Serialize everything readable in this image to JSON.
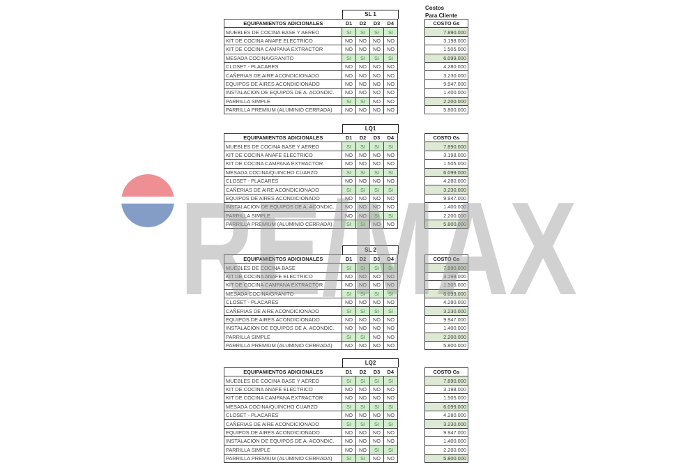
{
  "header": {
    "costos_line1": "Costos",
    "costos_line2": "Para Cliente"
  },
  "watermark": {
    "text": "RE/MAX",
    "logo": "remax-balloon",
    "colors": {
      "red": "#e0343c",
      "blue": "#1f4e9a",
      "letters": "#9a9a9a"
    }
  },
  "colors": {
    "si_fill": "#d4ecd0",
    "cost_highlight": "#dde9d4"
  },
  "columns": {
    "label": "EQUIPAMIENTOS ADICIONALES",
    "d": [
      "D1",
      "D2",
      "D3",
      "D4"
    ],
    "cost": "COSTO Gs"
  },
  "tables": [
    {
      "name": "SL 1",
      "rows": [
        {
          "item": "MUEBLES DE COCINA BASE Y AEREO",
          "d": [
            "SI",
            "SI",
            "SI",
            "SI"
          ],
          "cost": "7.890.000",
          "hl": true
        },
        {
          "item": "KIT DE COCINA ANAFE ELECTRICO",
          "d": [
            "NO",
            "NO",
            "NO",
            "NO"
          ],
          "cost": "3.198.000",
          "hl": false
        },
        {
          "item": "KIT DE COCINA CAMPANA EXTRACTOR",
          "d": [
            "NO",
            "NO",
            "NO",
            "NO"
          ],
          "cost": "1.505.000",
          "hl": false
        },
        {
          "item": "MESADA COCINA/GRANITO",
          "d": [
            "SI",
            "SI",
            "SI",
            "SI"
          ],
          "cost": "6.099.000",
          "hl": true
        },
        {
          "item": "CLOSET - PLACARES",
          "d": [
            "NO",
            "NO",
            "NO",
            "NO"
          ],
          "cost": "4.280.000",
          "hl": false
        },
        {
          "item": "CAÑERIAS DE AIRE ACONDICIONADO",
          "d": [
            "NO",
            "NO",
            "NO",
            "NO"
          ],
          "cost": "3.230.000",
          "hl": false
        },
        {
          "item": "EQUIPOS DE AIRES ACONDICIONADO",
          "d": [
            "NO",
            "NO",
            "NO",
            "NO"
          ],
          "cost": "9.947.000",
          "hl": false
        },
        {
          "item": "INSTALACION DE EQUIPOS DE A. ACONDIC.",
          "d": [
            "NO",
            "NO",
            "NO",
            "NO"
          ],
          "cost": "1.400.000",
          "hl": false
        },
        {
          "item": "PARRILLA SIMPLE",
          "d": [
            "SI",
            "SI",
            "NO",
            "NO"
          ],
          "cost": "2.200.000",
          "hl": true
        },
        {
          "item": "PARRILLA PREMIUM (ALUMINIO CERRADA)",
          "d": [
            "NO",
            "NO",
            "NO",
            "NO"
          ],
          "cost": "5.800.000",
          "hl": false
        }
      ]
    },
    {
      "name": "LQ1",
      "rows": [
        {
          "item": "MUEBLES DE COCINA BASE Y AEREO",
          "d": [
            "SI",
            "SI",
            "SI",
            "SI"
          ],
          "cost": "7.890.000",
          "hl": true
        },
        {
          "item": "KIT DE COCINA ANAFE ELECTRICO",
          "d": [
            "NO",
            "NO",
            "NO",
            "NO"
          ],
          "cost": "3.198.000",
          "hl": false
        },
        {
          "item": "KIT DE COCINA CAMPANA EXTRACTOR",
          "d": [
            "NO",
            "NO",
            "NO",
            "NO"
          ],
          "cost": "1.505.000",
          "hl": false
        },
        {
          "item": "MESADA COCINA/QUINCHO CUARZO",
          "d": [
            "SI",
            "SI",
            "SI",
            "SI"
          ],
          "cost": "6.099.000",
          "hl": true
        },
        {
          "item": "CLOSET - PLACARES",
          "d": [
            "NO",
            "NO",
            "NO",
            "NO"
          ],
          "cost": "4.280.000",
          "hl": false
        },
        {
          "item": "CAÑERIAS DE AIRE ACONDICIONADO",
          "d": [
            "SI",
            "SI",
            "SI",
            "SI"
          ],
          "cost": "3.230.000",
          "hl": true
        },
        {
          "item": "EQUIPOS DE AIRES ACONDICIONADO",
          "d": [
            "NO",
            "NO",
            "NO",
            "NO"
          ],
          "cost": "9.947.000",
          "hl": false
        },
        {
          "item": "INSTALACION DE EQUIPOS DE A. ACONDIC.",
          "d": [
            "NO",
            "NO",
            "NO",
            "NO"
          ],
          "cost": "1.400.000",
          "hl": false
        },
        {
          "item": "PARRILLA SIMPLE",
          "d": [
            "NO",
            "NO",
            "SI",
            "SI"
          ],
          "cost": "2.200.000",
          "hl": false
        },
        {
          "item": "PARRILLA PREMIUM (ALUMINIO CERRADA)",
          "d": [
            "SI",
            "SI",
            "NO",
            "NO"
          ],
          "cost": "5.800.000",
          "hl": true
        }
      ]
    },
    {
      "name": "SL 2",
      "rows": [
        {
          "item": "MUEBLES DE COCINA BASE",
          "d": [
            "SI",
            "SI",
            "SI",
            "SI"
          ],
          "cost": "7.890.000",
          "hl": true
        },
        {
          "item": "KIT DE COCINA ANAFE ELECTRICO",
          "d": [
            "NO",
            "NO",
            "NO",
            "NO"
          ],
          "cost": "3.198.000",
          "hl": false
        },
        {
          "item": "KIT DE COCINA CAMPANA EXTRACTOR",
          "d": [
            "NO",
            "NO",
            "NO",
            "NO"
          ],
          "cost": "1.505.000",
          "hl": false
        },
        {
          "item": "MESADA COCINA/GRANITO",
          "d": [
            "SI",
            "SI",
            "SI",
            "SI"
          ],
          "cost": "6.099.000",
          "hl": true
        },
        {
          "item": "CLOSET - PLACARES",
          "d": [
            "NO",
            "NO",
            "NO",
            "NO"
          ],
          "cost": "4.280.000",
          "hl": false
        },
        {
          "item": "CAÑERIAS DE AIRE ACONDICIONADO",
          "d": [
            "SI",
            "SI",
            "SI",
            "SI"
          ],
          "cost": "3.230.000",
          "hl": true
        },
        {
          "item": "EQUIPOS DE AIRES ACONDICIONADO",
          "d": [
            "NO",
            "NO",
            "NO",
            "NO"
          ],
          "cost": "9.947.000",
          "hl": false
        },
        {
          "item": "INSTALACION DE EQUIPOS DE A. ACONDIC.",
          "d": [
            "NO",
            "NO",
            "NO",
            "NO"
          ],
          "cost": "1.400.000",
          "hl": false
        },
        {
          "item": "PARRILLA SIMPLE",
          "d": [
            "SI",
            "SI",
            "NO",
            "NO"
          ],
          "cost": "2.200.000",
          "hl": true
        },
        {
          "item": "PARRILLA PREMIUM (ALUMINIO CERRADA)",
          "d": [
            "NO",
            "NO",
            "NO",
            "NO"
          ],
          "cost": "5.800.000",
          "hl": false
        }
      ]
    },
    {
      "name": "LQ2",
      "rows": [
        {
          "item": "MUEBLES DE COCINA BASE Y AEREO",
          "d": [
            "SI",
            "SI",
            "SI",
            "SI"
          ],
          "cost": "7.890.000",
          "hl": true
        },
        {
          "item": "KIT DE COCINA ANAFE ELECTRICO",
          "d": [
            "NO",
            "NO",
            "NO",
            "NO"
          ],
          "cost": "3.198.000",
          "hl": false
        },
        {
          "item": "KIT DE COCINA CAMPANA EXTRACTOR",
          "d": [
            "NO",
            "NO",
            "NO",
            "NO"
          ],
          "cost": "1.505.000",
          "hl": false
        },
        {
          "item": "MESADA COCINA/QUINCHO CUARZO",
          "d": [
            "SI",
            "SI",
            "SI",
            "SI"
          ],
          "cost": "6.099.000",
          "hl": true
        },
        {
          "item": "CLOSET - PLACARES",
          "d": [
            "NO",
            "NO",
            "NO",
            "NO"
          ],
          "cost": "4.280.000",
          "hl": false
        },
        {
          "item": "CAÑERIAS DE AIRE ACONDICIONADO",
          "d": [
            "SI",
            "SI",
            "SI",
            "SI"
          ],
          "cost": "3.230.000",
          "hl": true
        },
        {
          "item": "EQUIPOS DE AIRES ACONDICIONADO",
          "d": [
            "NO",
            "NO",
            "NO",
            "NO"
          ],
          "cost": "9.947.000",
          "hl": false
        },
        {
          "item": "INSTALACION DE EQUIPOS DE A. ACONDIC.",
          "d": [
            "NO",
            "NO",
            "NO",
            "NO"
          ],
          "cost": "1.400.000",
          "hl": false
        },
        {
          "item": "PARRILLA SIMPLE",
          "d": [
            "NO",
            "NO",
            "SI",
            "SI"
          ],
          "cost": "2.200.000",
          "hl": false
        },
        {
          "item": "PARRILLA PREMIUM (ALUMINIO CERRADA)",
          "d": [
            "SI",
            "SI",
            "NO",
            "NO"
          ],
          "cost": "5.800.000",
          "hl": true
        }
      ]
    }
  ]
}
